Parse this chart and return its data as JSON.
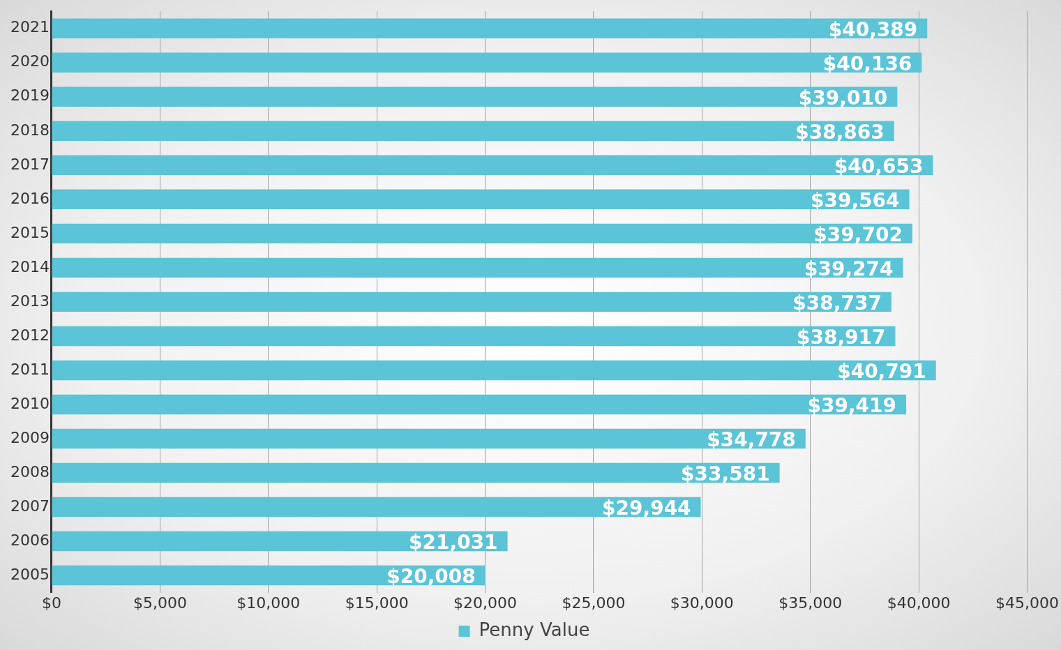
{
  "chart_data": {
    "type": "bar",
    "orientation": "horizontal",
    "categories": [
      "2021",
      "2020",
      "2019",
      "2018",
      "2017",
      "2016",
      "2015",
      "2014",
      "2013",
      "2012",
      "2011",
      "2010",
      "2009",
      "2008",
      "2007",
      "2006",
      "2005"
    ],
    "series": [
      {
        "name": "Penny Value",
        "color": "#5bc4d6",
        "values": [
          40389,
          40136,
          39010,
          38863,
          40653,
          39564,
          39702,
          39274,
          38737,
          38917,
          40791,
          39419,
          34778,
          33581,
          29944,
          21031,
          20008
        ],
        "value_labels": [
          "$40,389",
          "$40,136",
          "$39,010",
          "$38,863",
          "$40,653",
          "$39,564",
          "$39,702",
          "$39,274",
          "$38,737",
          "$38,917",
          "$40,791",
          "$39,419",
          "$34,778",
          "$33,581",
          "$29,944",
          "$21,031",
          "$20,008"
        ]
      }
    ],
    "xlim": [
      0,
      45000
    ],
    "xticks": [
      {
        "value": 0,
        "label": "$0"
      },
      {
        "value": 5000,
        "label": "$5,000"
      },
      {
        "value": 10000,
        "label": "$10,000"
      },
      {
        "value": 15000,
        "label": "$15,000"
      },
      {
        "value": 20000,
        "label": "$20,000"
      },
      {
        "value": 25000,
        "label": "$25,000"
      },
      {
        "value": 30000,
        "label": "$30,000"
      },
      {
        "value": 35000,
        "label": "$35,000"
      },
      {
        "value": 40000,
        "label": "$40,000"
      },
      {
        "value": 45000,
        "label": "$45,000"
      }
    ],
    "grid": "x",
    "legend": "bottom"
  }
}
